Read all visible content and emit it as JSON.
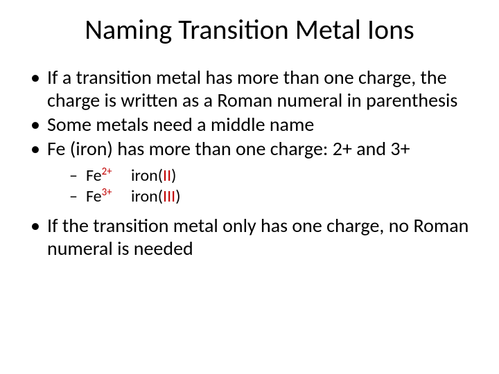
{
  "colors": {
    "text": "#000000",
    "accent_red": "#c00000",
    "background": "#ffffff"
  },
  "typography": {
    "title_fontsize": 40,
    "body_fontsize": 28,
    "sub_fontsize": 24,
    "font_family": "Calibri"
  },
  "title": "Naming Transition Metal Ions",
  "bullets": {
    "b1": "If a transition metal has more than one charge, the charge is written as a Roman numeral in parenthesis",
    "b2": "Some metals need a middle name",
    "b3": "Fe (iron) has more than one charge: 2+ and 3+",
    "b4": "If the transition metal only has one charge, no Roman numeral is needed"
  },
  "examples": {
    "e1": {
      "symbol": "Fe",
      "charge": "2+",
      "name_pre": "iron(",
      "roman": "II",
      "name_post": ")"
    },
    "e2": {
      "symbol": "Fe",
      "charge": "3+",
      "name_pre": "iron(",
      "roman": "III",
      "name_post": ")"
    }
  }
}
